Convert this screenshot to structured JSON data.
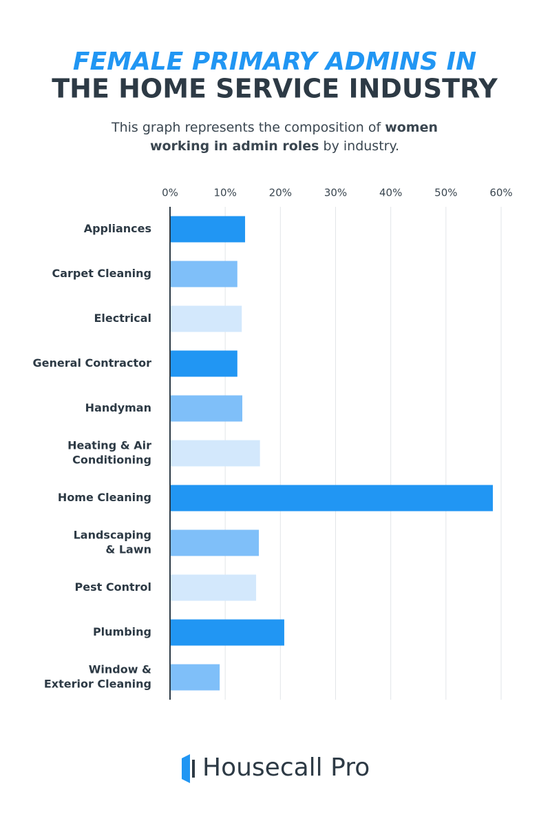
{
  "chart_data": {
    "type": "bar",
    "orientation": "horizontal",
    "title": [
      "FEMALE PRIMARY ADMINS IN",
      "THE HOME SERVICE INDUSTRY"
    ],
    "subtitle": [
      [
        {
          "text": "This graph represents the composition of ",
          "bold": false
        },
        {
          "text": "women",
          "bold": true
        }
      ],
      [
        {
          "text": "working in admin roles",
          "bold": true
        },
        {
          "text": " by industry.",
          "bold": false
        }
      ]
    ],
    "categories": [
      [
        "Appliances"
      ],
      [
        "Carpet Cleaning"
      ],
      [
        "Electrical"
      ],
      [
        "General Contractor"
      ],
      [
        "Handyman"
      ],
      [
        "Heating & Air",
        "Conditioning"
      ],
      [
        "Home Cleaning"
      ],
      [
        "Landscaping",
        "& Lawn"
      ],
      [
        "Pest Control"
      ],
      [
        "Plumbing"
      ],
      [
        "Window &",
        "Exterior Cleaning"
      ]
    ],
    "values": [
      13.6,
      12.2,
      13.0,
      12.2,
      13.1,
      16.3,
      58.5,
      16.1,
      15.6,
      20.7,
      9.0
    ],
    "colors": [
      "#2196f3",
      "#7fbff9",
      "#d3e8fc",
      "#2196f3",
      "#7fbff9",
      "#d3e8fc",
      "#2196f3",
      "#7fbff9",
      "#d3e8fc",
      "#2196f3",
      "#7fbff9"
    ],
    "xlim": [
      0,
      60
    ],
    "xticks": [
      {
        "value": 0,
        "label": "0%"
      },
      {
        "value": 10,
        "label": "10%"
      },
      {
        "value": 20,
        "label": "20%"
      },
      {
        "value": 30,
        "label": "30%"
      },
      {
        "value": 40,
        "label": "40%"
      },
      {
        "value": 50,
        "label": "50%"
      },
      {
        "value": 60,
        "label": "60%"
      }
    ],
    "grid": true
  },
  "footer": {
    "logo": "Housecall Pro"
  }
}
